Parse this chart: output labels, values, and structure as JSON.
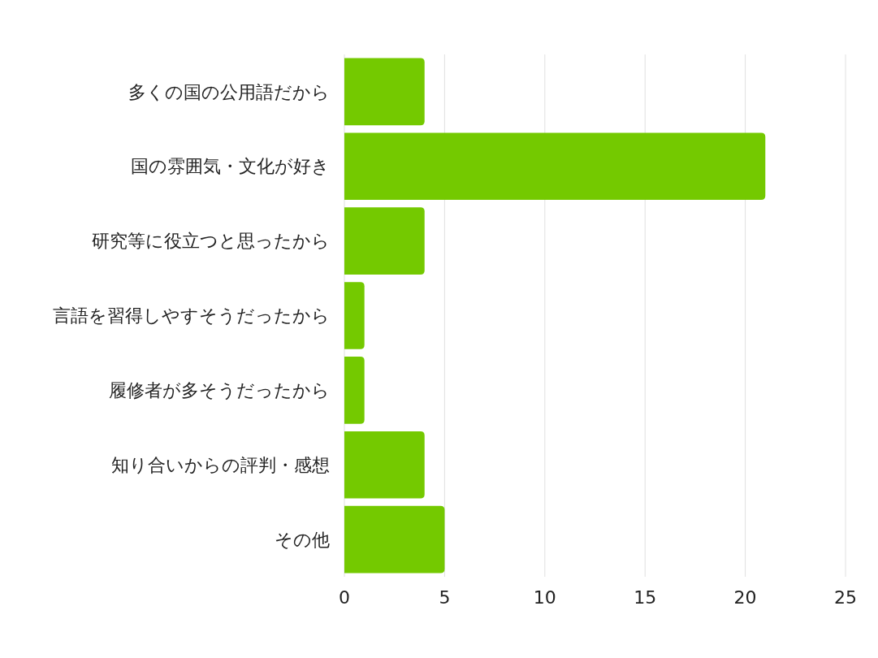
{
  "chart_data": {
    "type": "bar",
    "orientation": "horizontal",
    "categories": [
      "多くの国の公用語だから",
      "国の雰囲気・文化が好き",
      "研究等に役立つと思ったから",
      "言語を習得しやすそうだったから",
      "履修者が多そうだったから",
      "知り合いからの評判・感想",
      "その他"
    ],
    "values": [
      4,
      21,
      4,
      1,
      1,
      4,
      5
    ],
    "color": "#74c900",
    "xlim": [
      0,
      25
    ],
    "xticks": [
      0,
      5,
      10,
      15,
      20,
      25
    ],
    "grid": "x"
  }
}
